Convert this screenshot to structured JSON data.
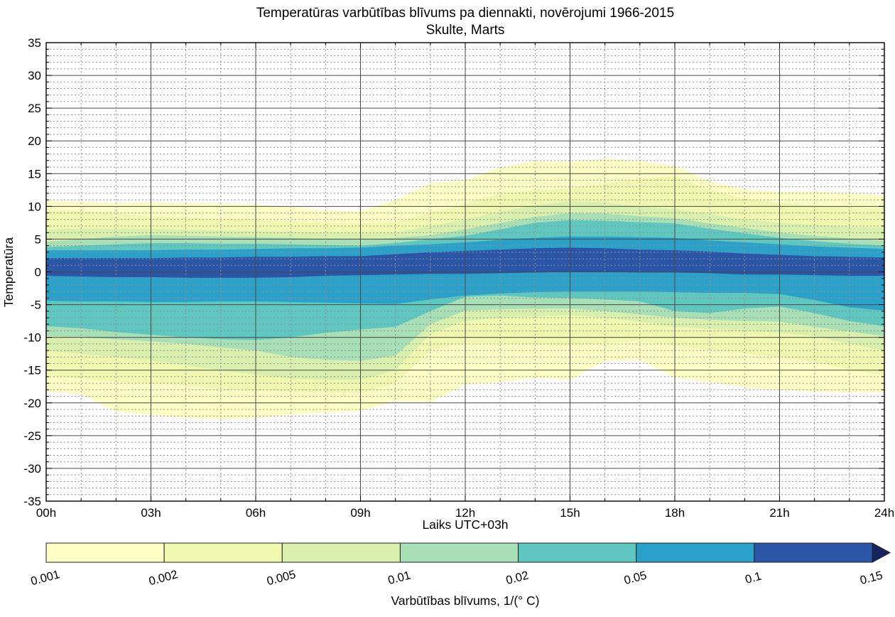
{
  "title": {
    "line1": "Temperatūras varbūtības blīvums pa diennakti, novērojumi 1966-2015",
    "line2": "Skulte, Marts"
  },
  "axes": {
    "x": {
      "label": "Laiks UTC+03h",
      "min": 0,
      "max": 24,
      "major_ticks": [
        {
          "value": 0,
          "label": "00h"
        },
        {
          "value": 3,
          "label": "03h"
        },
        {
          "value": 6,
          "label": "06h"
        },
        {
          "value": 9,
          "label": "09h"
        },
        {
          "value": 12,
          "label": "12h"
        },
        {
          "value": 15,
          "label": "15h"
        },
        {
          "value": 18,
          "label": "18h"
        },
        {
          "value": 21,
          "label": "21h"
        },
        {
          "value": 24,
          "label": "24h"
        }
      ],
      "minor_step": 1
    },
    "y": {
      "label": "Temperatūra",
      "min": -35,
      "max": 35,
      "major_ticks": [
        {
          "value": 35,
          "label": "35"
        },
        {
          "value": 30,
          "label": "30"
        },
        {
          "value": 25,
          "label": "25"
        },
        {
          "value": 20,
          "label": "20"
        },
        {
          "value": 15,
          "label": "15"
        },
        {
          "value": 10,
          "label": "10"
        },
        {
          "value": 5,
          "label": "5"
        },
        {
          "value": 0,
          "label": "0"
        },
        {
          "value": -5,
          "label": "-5"
        },
        {
          "value": -10,
          "label": "-10"
        },
        {
          "value": -15,
          "label": "-15"
        },
        {
          "value": -20,
          "label": "-20"
        },
        {
          "value": -25,
          "label": "-25"
        },
        {
          "value": -30,
          "label": "-30"
        },
        {
          "value": -35,
          "label": "-35"
        }
      ],
      "minor_step": 1
    }
  },
  "colorbar": {
    "label": "Varbūtības blīvums, 1/(° C)",
    "tick_labels": [
      "0.001",
      "0.002",
      "0.005",
      "0.01",
      "0.02",
      "0.05",
      "0.1",
      "0.15"
    ],
    "segment_colors": [
      "#fefec5",
      "#f0f8b0",
      "#d9efad",
      "#a8dfb6",
      "#5fc7c0",
      "#2ba0c8",
      "#2b55a7"
    ],
    "overflow_arrow_color": "#16245e"
  },
  "chart_data": {
    "type": "contour",
    "title": "Temperatūras varbūtības blīvums pa diennakti, novērojumi 1966-2015 — Skulte, Marts",
    "xlabel": "Laiks UTC+03h",
    "ylabel": "Temperatūra",
    "xlim": [
      0,
      24
    ],
    "ylim": [
      -35,
      35
    ],
    "grid": {
      "x_minor_step": 1,
      "x_major_step": 3,
      "y_minor_step": 1,
      "y_major_step": 5,
      "minor_style": "dotted",
      "major_style": "solid"
    },
    "legend_position": "bottom-colorbar",
    "levels": [
      0.001,
      0.002,
      0.005,
      0.01,
      0.02,
      0.05,
      0.1,
      0.15
    ],
    "x_hours": [
      0,
      1,
      2,
      3,
      4,
      5,
      6,
      7,
      8,
      9,
      10,
      11,
      12,
      13,
      14,
      15,
      16,
      17,
      18,
      19,
      20,
      21,
      22,
      23,
      24
    ],
    "bands": [
      {
        "level": 0.001,
        "color": "#fefec5",
        "upper": [
          10.9,
          10.7,
          10.5,
          10.6,
          10.5,
          10.4,
          10.3,
          9.9,
          9.4,
          9.3,
          11.0,
          13.6,
          14.0,
          16.0,
          16.9,
          16.8,
          17.3,
          16.9,
          16.2,
          13.8,
          12.6,
          12.2,
          12.3,
          12.0,
          11.7
        ],
        "lower": [
          -18.3,
          -18.6,
          -21.4,
          -21.8,
          -22.3,
          -22.5,
          -22.3,
          -21.8,
          -21.5,
          -21.2,
          -19.8,
          -19.9,
          -17.2,
          -16.8,
          -16.2,
          -16.5,
          -13.6,
          -13.4,
          -16.2,
          -16.8,
          -17.6,
          -18.0,
          -18.3,
          -18.4,
          -18.4
        ]
      },
      {
        "level": 0.002,
        "color": "#f0f8b0",
        "upper": [
          9.5,
          9.3,
          8.8,
          8.5,
          8.3,
          8.1,
          7.9,
          7.7,
          7.5,
          7.4,
          7.6,
          9.0,
          10.4,
          12.0,
          12.5,
          12.7,
          13.5,
          14.2,
          14.6,
          12.5,
          11.2,
          10.5,
          10.2,
          9.9,
          9.7
        ],
        "lower": [
          -15.8,
          -16.3,
          -16.8,
          -17.0,
          -17.4,
          -17.8,
          -18.1,
          -18.3,
          -18.4,
          -18.5,
          -17.0,
          -12.0,
          -10.8,
          -10.9,
          -11.1,
          -11.3,
          -10.9,
          -10.5,
          -11.3,
          -11.9,
          -12.5,
          -13.0,
          -13.7,
          -15.0,
          -15.8
        ]
      },
      {
        "level": 0.005,
        "color": "#d9efad",
        "upper": [
          6.5,
          6.6,
          6.6,
          6.6,
          6.4,
          6.3,
          6.2,
          6.1,
          6.0,
          5.9,
          6.0,
          7.0,
          8.0,
          9.2,
          10.2,
          10.8,
          10.6,
          10.0,
          9.6,
          8.8,
          8.0,
          7.5,
          7.2,
          6.9,
          6.7
        ],
        "lower": [
          -12.0,
          -12.5,
          -13.0,
          -13.5,
          -14.3,
          -15.0,
          -15.7,
          -16.3,
          -16.5,
          -16.5,
          -15.0,
          -9.5,
          -7.5,
          -7.0,
          -6.8,
          -6.6,
          -7.0,
          -7.6,
          -8.4,
          -8.7,
          -9.0,
          -9.3,
          -9.8,
          -11.0,
          -12.0
        ]
      },
      {
        "level": 0.01,
        "color": "#a8dfb6",
        "upper": [
          4.6,
          5.0,
          5.4,
          5.6,
          5.5,
          5.4,
          5.3,
          5.2,
          5.0,
          4.9,
          5.2,
          5.6,
          6.5,
          7.5,
          8.4,
          9.0,
          8.9,
          8.5,
          8.2,
          7.4,
          6.7,
          6.0,
          5.5,
          5.1,
          4.8
        ],
        "lower": [
          -9.8,
          -10.0,
          -10.3,
          -10.6,
          -11.0,
          -11.5,
          -12.0,
          -13.0,
          -13.4,
          -13.6,
          -12.8,
          -8.0,
          -5.9,
          -5.7,
          -5.6,
          -5.6,
          -6.0,
          -6.5,
          -7.0,
          -7.3,
          -7.5,
          -7.6,
          -8.4,
          -9.1,
          -9.8
        ]
      },
      {
        "level": 0.02,
        "color": "#5fc7c0",
        "upper": [
          3.8,
          4.0,
          4.2,
          4.4,
          4.4,
          4.3,
          4.3,
          4.2,
          4.1,
          4.0,
          4.4,
          5.0,
          5.5,
          6.5,
          7.5,
          7.9,
          7.8,
          7.6,
          7.4,
          6.6,
          5.9,
          5.2,
          4.7,
          4.3,
          4.0
        ],
        "lower": [
          -8.3,
          -8.6,
          -9.2,
          -9.6,
          -10.0,
          -10.3,
          -10.4,
          -10.0,
          -9.3,
          -8.8,
          -8.4,
          -6.0,
          -3.8,
          -3.6,
          -3.9,
          -4.0,
          -4.2,
          -4.5,
          -6.0,
          -6.3,
          -5.6,
          -5.3,
          -6.3,
          -7.5,
          -8.3
        ]
      },
      {
        "level": 0.05,
        "color": "#2ba0c8",
        "upper": [
          3.3,
          3.3,
          3.3,
          3.3,
          3.4,
          3.4,
          3.5,
          3.6,
          3.6,
          3.7,
          4.0,
          4.2,
          4.5,
          4.9,
          5.2,
          5.4,
          5.4,
          5.3,
          5.2,
          4.8,
          4.5,
          4.2,
          3.9,
          3.7,
          3.5
        ],
        "lower": [
          -4.4,
          -4.5,
          -4.5,
          -4.6,
          -4.6,
          -4.5,
          -4.5,
          -4.6,
          -4.7,
          -4.8,
          -4.9,
          -4.2,
          -3.6,
          -3.3,
          -3.1,
          -3.0,
          -3.0,
          -3.0,
          -3.1,
          -3.2,
          -3.2,
          -3.4,
          -4.3,
          -5.4,
          -5.9
        ]
      },
      {
        "level": 0.1,
        "color": "#2b55a7",
        "upper": [
          2.1,
          2.1,
          2.1,
          2.1,
          2.2,
          2.2,
          2.3,
          2.3,
          2.4,
          2.4,
          2.7,
          3.0,
          3.2,
          3.4,
          3.6,
          3.7,
          3.6,
          3.4,
          3.3,
          3.1,
          2.8,
          2.6,
          2.4,
          2.3,
          2.2
        ],
        "lower": [
          -0.6,
          -0.7,
          -0.8,
          -0.8,
          -0.9,
          -0.9,
          -0.9,
          -0.8,
          -0.6,
          -0.5,
          -0.4,
          -0.3,
          -0.3,
          -0.2,
          -0.1,
          0.0,
          0.0,
          -0.1,
          -0.1,
          -0.2,
          -0.4,
          -0.4,
          -0.5,
          -0.6,
          -0.6
        ]
      }
    ]
  }
}
